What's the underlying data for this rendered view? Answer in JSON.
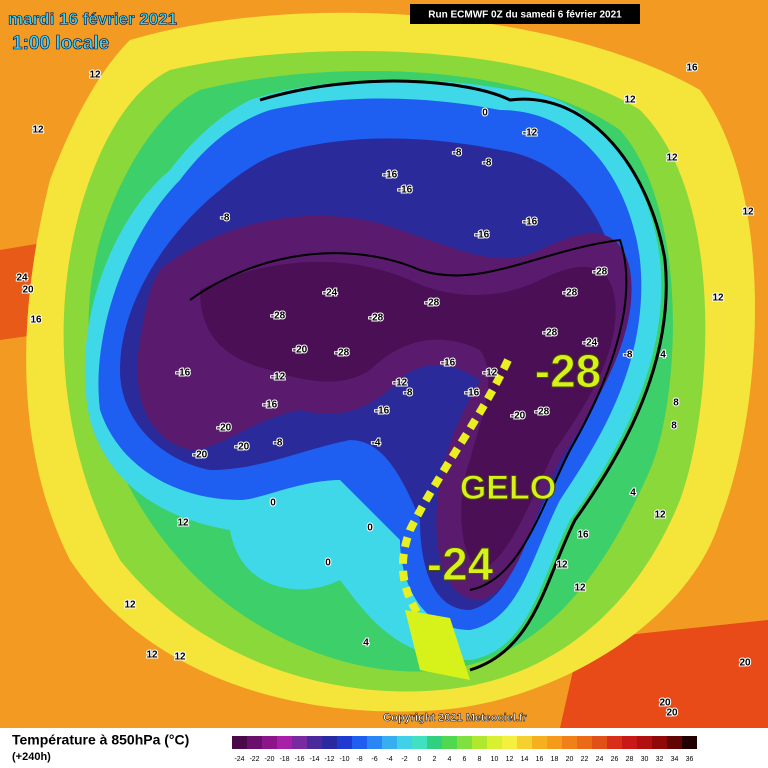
{
  "header": {
    "date": "mardi 16 février 2021",
    "time": "1:00 locale",
    "run": "Run ECMWF 0Z du samedi 6 février 2021"
  },
  "map": {
    "labels": [
      "12",
      "12",
      "16",
      "12",
      "12",
      "12",
      "12",
      "24",
      "20",
      "16",
      "0",
      "-12",
      "-8",
      "-8",
      "-16",
      "-16",
      "-8",
      "-16",
      "-16",
      "-28",
      "-28",
      "-24",
      "-28",
      "-28",
      "-28",
      "-28",
      "-24",
      "-20",
      "-28",
      "-8",
      "4",
      "-16",
      "-12",
      "-16",
      "-12",
      "-12",
      "-8",
      "-16",
      "-16",
      "-16",
      "-20",
      "-28",
      "-20",
      "-8",
      "-4",
      "-20",
      "-20",
      "8",
      "8",
      "4",
      "12",
      "0",
      "0",
      "0",
      "12",
      "12",
      "12",
      "16",
      "12",
      "12",
      "12",
      "4",
      "20",
      "20",
      "20"
    ],
    "annotations": [
      "-28",
      "GELO",
      "-24"
    ]
  },
  "footer": {
    "title": "Température à 850hPa (°C)",
    "lead": "(+240h)",
    "copyright": "Copyright 2021 Meteociel.fr"
  },
  "colorbar": {
    "ticks": [
      -24,
      -22,
      -20,
      -18,
      -16,
      -14,
      -12,
      -10,
      -8,
      -6,
      -4,
      -2,
      0,
      2,
      4,
      6,
      8,
      10,
      12,
      14,
      16,
      18,
      20,
      22,
      24,
      26,
      28,
      30,
      32,
      34,
      36
    ],
    "colors": [
      "#4a0a4a",
      "#6a0f6a",
      "#8a168a",
      "#a81fa8",
      "#7a2aa0",
      "#4a2a9a",
      "#2a2aa0",
      "#1e3ad0",
      "#1e5ef0",
      "#2a86f5",
      "#36aef0",
      "#40d0e8",
      "#40e0c0",
      "#30d080",
      "#50d850",
      "#80e040",
      "#b0e830",
      "#d8f030",
      "#f5f040",
      "#f5d030",
      "#f5b020",
      "#f59a1a",
      "#f08018",
      "#ea6a18",
      "#e05018",
      "#d83018",
      "#c81818",
      "#b01010",
      "#900808",
      "#600404",
      "#200000"
    ]
  }
}
